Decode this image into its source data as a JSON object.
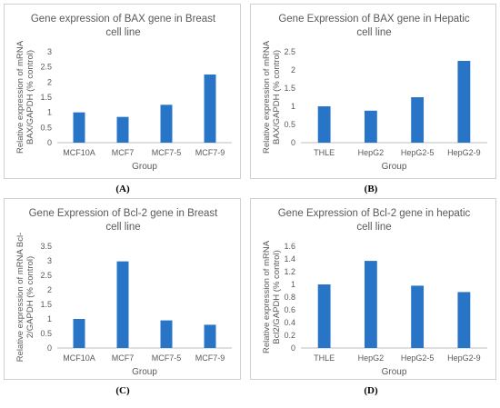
{
  "colors": {
    "bar": "#2874c6",
    "axis": "#bfbfbf",
    "text": "#595959"
  },
  "chart_data": [
    {
      "type": "bar",
      "title": "Gene expression of BAX gene in Breast cell line",
      "title_lines": [
        "Gene expression of BAX gene in Breast",
        "cell line"
      ],
      "xlabel": "Group",
      "ylabel": "Relative expression of mRNA BAX/GAPDH (% control)",
      "ylabel_lines": [
        "Relative expression of mRNA",
        "BAX/GAPDH (% control)"
      ],
      "categories": [
        "MCF10A",
        "MCF7",
        "MCF7-5",
        "MCF7-9"
      ],
      "values": [
        1.0,
        0.85,
        1.25,
        2.25
      ],
      "ylim": [
        0,
        3
      ],
      "yticks": [
        "0",
        "0.5",
        "1",
        "1.5",
        "2",
        "2.5",
        "3"
      ],
      "panel_label": "(A)"
    },
    {
      "type": "bar",
      "title": "Gene Expression of BAX gene in Hepatic cell line",
      "title_lines": [
        "Gene Expression of BAX gene in Hepatic",
        "cell line"
      ],
      "xlabel": "Group",
      "ylabel": "Relative expression of mRNA BAX/GAPDH (% control)",
      "ylabel_lines": [
        "Relative expression of mRNA",
        "BAX/GAPDH (% control)"
      ],
      "categories": [
        "THLE",
        "HepG2",
        "HepG2-5",
        "HepG2-9"
      ],
      "values": [
        1.0,
        0.88,
        1.25,
        2.25
      ],
      "ylim": [
        0,
        2.5
      ],
      "yticks": [
        "0",
        "0.5",
        "1",
        "1.5",
        "2",
        "2.5"
      ],
      "panel_label": "(B)"
    },
    {
      "type": "bar",
      "title": "Gene Expression of Bcl-2 gene in Breast cell line",
      "title_lines": [
        "Gene Expression of Bcl-2 gene in Breast",
        "cell line"
      ],
      "xlabel": "Group",
      "ylabel": "Relative expression of mRNA Bcl-2/GAPDH (% control)",
      "ylabel_lines": [
        "Relative expression of mRNA Bcl-",
        "2/GAPDH (% control)"
      ],
      "categories": [
        "MCF10A",
        "MCF7",
        "MCF7-5",
        "MCF7-9"
      ],
      "values": [
        1.0,
        2.98,
        0.95,
        0.8
      ],
      "ylim": [
        0,
        3.5
      ],
      "yticks": [
        "0",
        "0.5",
        "1",
        "1.5",
        "2",
        "2.5",
        "3",
        "3.5"
      ],
      "panel_label": "(C)"
    },
    {
      "type": "bar",
      "title": "Gene Expression of Bcl-2 gene in hepatic cell line",
      "title_lines": [
        "Gene Expression of Bcl-2 gene in hepatic",
        "cell line"
      ],
      "xlabel": "Group",
      "ylabel": "Relative expression of mRNA Bcl2/GAPDH (% control)",
      "ylabel_lines": [
        "Relative expression of mRNA",
        "Bcl2/GAPDH (% control)"
      ],
      "categories": [
        "THLE",
        "HepG2",
        "HepG2-5",
        "HepG2-9"
      ],
      "values": [
        1.0,
        1.37,
        0.98,
        0.88
      ],
      "ylim": [
        0,
        1.6
      ],
      "yticks": [
        "0",
        "0.2",
        "0.4",
        "0.6",
        "0.8",
        "1",
        "1.2",
        "1.4",
        "1.6"
      ],
      "panel_label": "(D)"
    }
  ]
}
